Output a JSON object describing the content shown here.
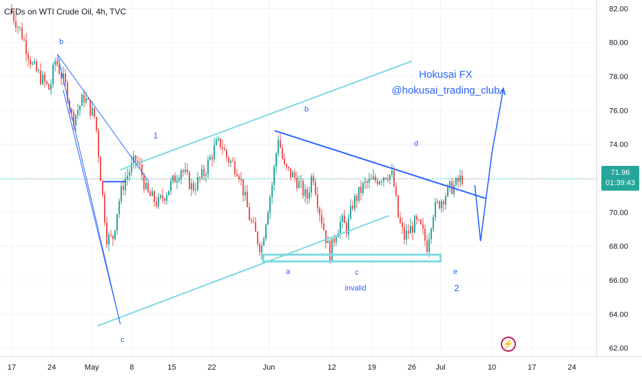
{
  "header": {
    "title": "CFDs on WTI Crude Oil, 4h, TVC"
  },
  "price_badge": {
    "price": "71.96",
    "countdown": "01:39:43"
  },
  "brand_icon": "tradingview-lightning-icon",
  "watermark": {
    "line1": "Hokusai FX",
    "line2": "@hokusai_trading_club"
  },
  "annotations": {
    "b_left": "b",
    "c_left": "c",
    "wave1": "1",
    "b_mid": "b",
    "d_mid": "d",
    "a_mid": "a",
    "c_mid": "c",
    "invalid": "invalid",
    "e_mid": "e",
    "wave2": "2"
  },
  "colors": {
    "up": "#26a69a",
    "down": "#ef5350",
    "channel": "#7dd8e0",
    "trend": "#2962ff",
    "text_blue": "#2962ff"
  },
  "chart_data": {
    "type": "candlestick",
    "title": "CFDs on WTI Crude Oil, 4h, TVC",
    "ylim": [
      61.5,
      82.5
    ],
    "y_ticks": [
      "62.00",
      "64.00",
      "66.00",
      "68.00",
      "70.00",
      "72.00",
      "74.00",
      "76.00",
      "78.00",
      "80.00",
      "82.00"
    ],
    "x_ticks": [
      "17",
      "24",
      "May",
      "8",
      "15",
      "22",
      "Jun",
      "12",
      "19",
      "26",
      "Jul",
      "10",
      "17",
      "24"
    ],
    "last_price": 71.96,
    "price_path": [
      {
        "date": "Apr 17",
        "price": 82.0
      },
      {
        "date": "Apr 19",
        "price": 80.6
      },
      {
        "date": "Apr 21",
        "price": 78.6
      },
      {
        "date": "Apr 24",
        "price": 77.2
      },
      {
        "date": "Apr 25",
        "price": 79.0
      },
      {
        "date": "Apr 27",
        "price": 77.2
      },
      {
        "date": "Apr 28",
        "price": 75.4
      },
      {
        "date": "Apr 30",
        "price": 76.8
      },
      {
        "date": "May 2",
        "price": 75.5
      },
      {
        "date": "May 3",
        "price": 71.8
      },
      {
        "date": "May 4",
        "price": 68.5
      },
      {
        "date": "May 5",
        "price": 68.4
      },
      {
        "date": "May 6",
        "price": 70.5
      },
      {
        "date": "May 7",
        "price": 71.8
      },
      {
        "date": "May 9",
        "price": 73.1
      },
      {
        "date": "May 10",
        "price": 72.4
      },
      {
        "date": "May 11",
        "price": 71.1
      },
      {
        "date": "May 13",
        "price": 70.5
      },
      {
        "date": "May 15",
        "price": 71.5
      },
      {
        "date": "May 17",
        "price": 72.6
      },
      {
        "date": "May 19",
        "price": 71.4
      },
      {
        "date": "May 21",
        "price": 72.3
      },
      {
        "date": "May 23",
        "price": 73.9
      },
      {
        "date": "May 24",
        "price": 74.1
      },
      {
        "date": "May 25",
        "price": 73.2
      },
      {
        "date": "May 27",
        "price": 72.5
      },
      {
        "date": "May 29",
        "price": 69.6
      },
      {
        "date": "May 31",
        "price": 67.8
      },
      {
        "date": "Jun 1",
        "price": 70.0
      },
      {
        "date": "Jun 2",
        "price": 71.8
      },
      {
        "date": "Jun 3",
        "price": 74.5
      },
      {
        "date": "Jun 4",
        "price": 72.6
      },
      {
        "date": "Jun 6",
        "price": 72.0
      },
      {
        "date": "Jun 8",
        "price": 70.8
      },
      {
        "date": "Jun 9",
        "price": 72.4
      },
      {
        "date": "Jun 10",
        "price": 70.4
      },
      {
        "date": "Jun 12",
        "price": 67.5
      },
      {
        "date": "Jun 13",
        "price": 68.8
      },
      {
        "date": "Jun 14",
        "price": 69.5
      },
      {
        "date": "Jun 15",
        "price": 69.0
      },
      {
        "date": "Jun 16",
        "price": 70.5
      },
      {
        "date": "Jun 18",
        "price": 71.6
      },
      {
        "date": "Jun 20",
        "price": 71.9
      },
      {
        "date": "Jun 22",
        "price": 72.3
      },
      {
        "date": "Jun 23",
        "price": 72.1
      },
      {
        "date": "Jun 24",
        "price": 69.6
      },
      {
        "date": "Jun 25",
        "price": 68.5
      },
      {
        "date": "Jun 27",
        "price": 69.4
      },
      {
        "date": "Jun 28",
        "price": 69.0
      },
      {
        "date": "Jun 29",
        "price": 68.0
      },
      {
        "date": "Jun 30",
        "price": 70.0
      },
      {
        "date": "Jul 1",
        "price": 70.5
      },
      {
        "date": "Jul 3",
        "price": 71.4
      },
      {
        "date": "Jul 4",
        "price": 71.6
      },
      {
        "date": "Jul 5",
        "price": 72.0
      }
    ],
    "drawings": [
      {
        "name": "upper-channel-line",
        "kind": "segment",
        "from": {
          "date": "May 6",
          "price": 72.5
        },
        "to": {
          "date": "Jun 26",
          "price": 78.9
        }
      },
      {
        "name": "lower-channel-line",
        "kind": "segment",
        "from": {
          "date": "May 2",
          "price": 63.3
        },
        "to": {
          "date": "Jun 22",
          "price": 69.8
        }
      },
      {
        "name": "triangle-upper-trendline",
        "kind": "segment",
        "from": {
          "date": "Jun 2",
          "price": 74.8
        },
        "to": {
          "date": "Jul 9",
          "price": 70.8
        }
      },
      {
        "name": "support-zone",
        "kind": "rect",
        "from": {
          "date": "May 31",
          "price": 67.5
        },
        "to": {
          "date": "Jul 1",
          "price": 67.1
        }
      },
      {
        "name": "wave-line-left-1",
        "kind": "segment",
        "from": {
          "date": "Apr 25",
          "price": 79.3
        },
        "to": {
          "date": "May 11",
          "price": 71.8
        }
      },
      {
        "name": "wave-line-left-2",
        "kind": "segment",
        "from": {
          "date": "Apr 25",
          "price": 79.3
        },
        "to": {
          "date": "May 6",
          "price": 63.4
        }
      },
      {
        "name": "wave-line-left-3",
        "kind": "segment",
        "from": {
          "date": "Apr 26",
          "price": 77.2
        },
        "to": {
          "date": "May 6",
          "price": 63.4
        }
      },
      {
        "name": "ma-flat-line",
        "kind": "segment",
        "from": {
          "date": "May 3",
          "price": 71.8
        },
        "to": {
          "date": "May 7",
          "price": 71.8
        }
      },
      {
        "name": "projection-path",
        "kind": "polyline",
        "points": [
          {
            "date": "Jul 7",
            "price": 71.6
          },
          {
            "date": "Jul 8",
            "price": 68.3
          },
          {
            "date": "Jul 10",
            "price": 73.5
          },
          {
            "date": "Jul 12",
            "price": 77.3
          }
        ]
      }
    ]
  }
}
